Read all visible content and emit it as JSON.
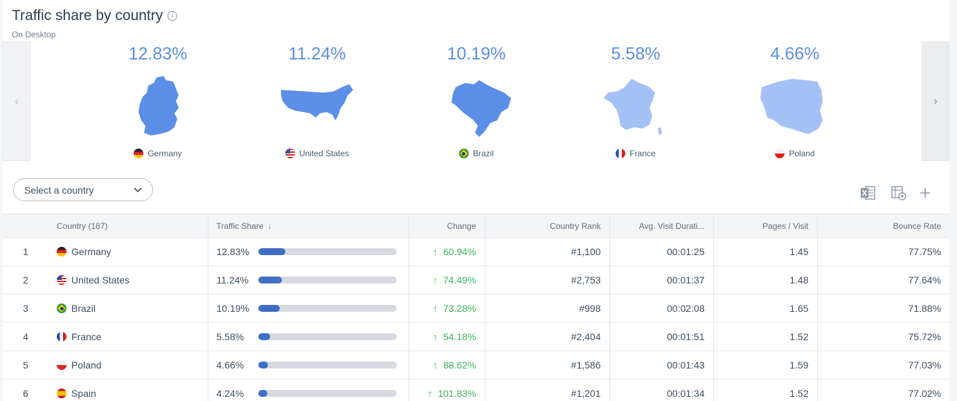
{
  "header": {
    "title": "Traffic share by country",
    "subtitle": "On Desktop"
  },
  "carousel": [
    {
      "pct": "12.83%",
      "country": "Germany",
      "flag": "de",
      "map_color": "#5b8ee6"
    },
    {
      "pct": "11.24%",
      "country": "United States",
      "flag": "us",
      "map_color": "#5b8ee6"
    },
    {
      "pct": "10.19%",
      "country": "Brazil",
      "flag": "br",
      "map_color": "#5b8ee6"
    },
    {
      "pct": "5.58%",
      "country": "France",
      "flag": "fr",
      "map_color": "#a3c1f5"
    },
    {
      "pct": "4.66%",
      "country": "Poland",
      "flag": "pl",
      "map_color": "#a3c1f5"
    }
  ],
  "filter": {
    "placeholder": "Select a country"
  },
  "table": {
    "headers": {
      "country": "Country (187)",
      "share": "Traffic Share",
      "change": "Change",
      "crank": "Country Rank",
      "dur": "Avg. Visit Durati...",
      "pages": "Pages / Visit",
      "bounce": "Bounce Rate"
    },
    "rows": [
      {
        "rank": "1",
        "country": "Germany",
        "flag": "de",
        "share": "12.83%",
        "share_frac": 0.1283,
        "change": "60.94%",
        "crank": "#1,100",
        "dur": "00:01:25",
        "pages": "1.45",
        "bounce": "77.75%"
      },
      {
        "rank": "2",
        "country": "United States",
        "flag": "us",
        "share": "11.24%",
        "share_frac": 0.1124,
        "change": "74.49%",
        "crank": "#2,753",
        "dur": "00:01:37",
        "pages": "1.48",
        "bounce": "77.64%"
      },
      {
        "rank": "3",
        "country": "Brazil",
        "flag": "br",
        "share": "10.19%",
        "share_frac": 0.1019,
        "change": "73.28%",
        "crank": "#998",
        "dur": "00:02:08",
        "pages": "1.65",
        "bounce": "71.88%"
      },
      {
        "rank": "4",
        "country": "France",
        "flag": "fr",
        "share": "5.58%",
        "share_frac": 0.0558,
        "change": "54.18%",
        "crank": "#2,404",
        "dur": "00:01:51",
        "pages": "1.52",
        "bounce": "75.72%"
      },
      {
        "rank": "5",
        "country": "Poland",
        "flag": "pl",
        "share": "4.66%",
        "share_frac": 0.0466,
        "change": "88.62%",
        "crank": "#1,586",
        "dur": "00:01:43",
        "pages": "1.59",
        "bounce": "77.03%"
      },
      {
        "rank": "6",
        "country": "Spain",
        "flag": "es",
        "share": "4.24%",
        "share_frac": 0.0424,
        "change": "101.83%",
        "crank": "#1,201",
        "dur": "00:01:34",
        "pages": "1.52",
        "bounce": "77.02%"
      }
    ]
  }
}
